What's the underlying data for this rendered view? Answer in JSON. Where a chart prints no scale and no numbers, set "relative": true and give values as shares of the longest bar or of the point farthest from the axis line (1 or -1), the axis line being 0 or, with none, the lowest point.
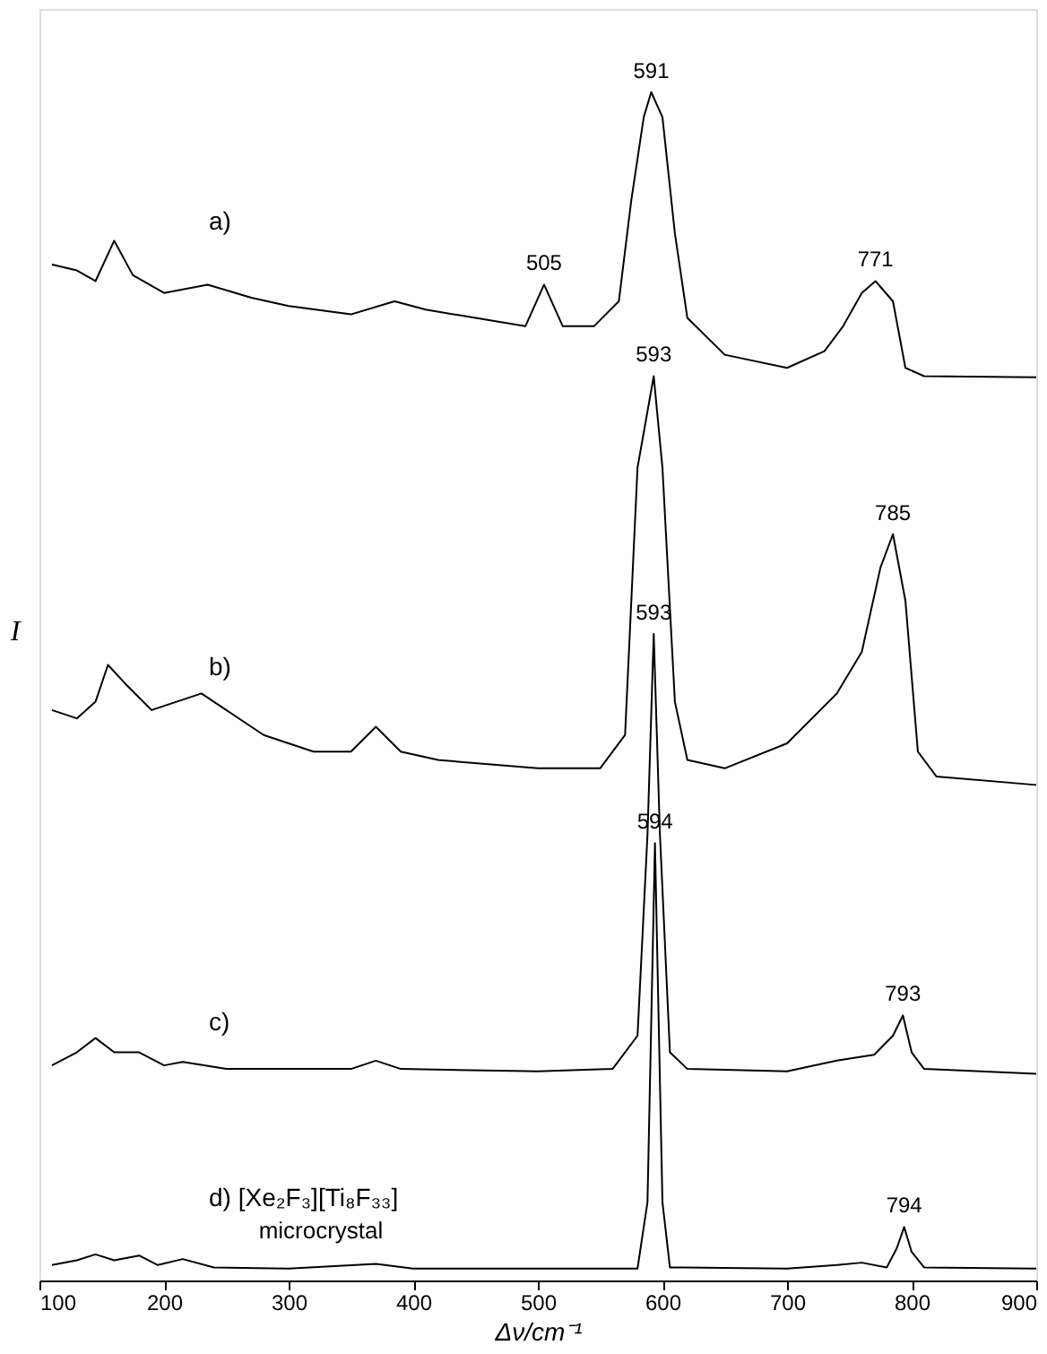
{
  "chart_data": {
    "type": "line",
    "relative": true,
    "xlabel": "Δν/cm⁻¹",
    "ylabel": "I",
    "xlim": [
      100,
      900
    ],
    "xticks": [
      100,
      200,
      300,
      400,
      500,
      600,
      700,
      800,
      900
    ],
    "grid": false,
    "marker": "none",
    "line_style": "solid",
    "series": [
      {
        "name": "a)",
        "color": "#000000",
        "x": [
          110,
          130,
          145,
          160,
          175,
          200,
          235,
          270,
          300,
          350,
          385,
          410,
          450,
          490,
          505,
          520,
          545,
          565,
          575,
          585,
          591,
          600,
          610,
          620,
          650,
          700,
          730,
          745,
          760,
          771,
          785,
          795,
          810,
          900
        ],
        "values": [
          0.855,
          0.85,
          0.841,
          0.875,
          0.846,
          0.831,
          0.838,
          0.827,
          0.82,
          0.813,
          0.824,
          0.817,
          0.81,
          0.803,
          0.838,
          0.803,
          0.803,
          0.824,
          0.909,
          0.979,
          1.0,
          0.979,
          0.881,
          0.81,
          0.779,
          0.768,
          0.782,
          0.803,
          0.831,
          0.841,
          0.824,
          0.768,
          0.761,
          0.76
        ]
      },
      {
        "name": "b)",
        "color": "#000000",
        "x": [
          110,
          130,
          145,
          155,
          170,
          190,
          230,
          250,
          280,
          320,
          350,
          370,
          390,
          420,
          500,
          550,
          570,
          580,
          593,
          600,
          610,
          620,
          650,
          700,
          740,
          760,
          775,
          785,
          795,
          805,
          820,
          900
        ],
        "values": [
          0.48,
          0.473,
          0.487,
          0.518,
          0.501,
          0.48,
          0.494,
          0.48,
          0.459,
          0.445,
          0.445,
          0.466,
          0.445,
          0.438,
          0.431,
          0.431,
          0.459,
          0.684,
          0.761,
          0.684,
          0.487,
          0.438,
          0.431,
          0.452,
          0.494,
          0.529,
          0.6,
          0.628,
          0.572,
          0.445,
          0.424,
          0.417
        ]
      },
      {
        "name": "c)",
        "color": "#000000",
        "x": [
          110,
          130,
          145,
          160,
          180,
          200,
          215,
          250,
          300,
          350,
          370,
          390,
          500,
          560,
          580,
          588,
          593,
          598,
          606,
          620,
          700,
          740,
          770,
          785,
          793,
          800,
          810,
          900
        ],
        "values": [
          0.181,
          0.192,
          0.204,
          0.192,
          0.192,
          0.181,
          0.184,
          0.178,
          0.178,
          0.178,
          0.185,
          0.178,
          0.176,
          0.178,
          0.206,
          0.375,
          0.544,
          0.375,
          0.192,
          0.178,
          0.176,
          0.185,
          0.19,
          0.206,
          0.223,
          0.192,
          0.178,
          0.174
        ]
      },
      {
        "name": "d) [Xe₂F₃][Ti₈F₃₃]",
        "color": "#000000",
        "x": [
          110,
          130,
          145,
          160,
          180,
          195,
          215,
          240,
          300,
          370,
          400,
          580,
          588,
          594,
          600,
          606,
          700,
          740,
          760,
          780,
          788,
          794,
          800,
          810,
          900
        ],
        "values": [
          0.013,
          0.017,
          0.022,
          0.017,
          0.021,
          0.013,
          0.018,
          0.011,
          0.01,
          0.014,
          0.01,
          0.01,
          0.066,
          0.368,
          0.066,
          0.011,
          0.01,
          0.013,
          0.015,
          0.011,
          0.027,
          0.045,
          0.024,
          0.011,
          0.01
        ]
      }
    ],
    "annotations": [
      {
        "text": "591",
        "x": 591,
        "y": 1.0
      },
      {
        "text": "505",
        "x": 505,
        "y": 0.838
      },
      {
        "text": "771",
        "x": 771,
        "y": 0.841
      },
      {
        "text": "593",
        "x": 593,
        "y": 0.761
      },
      {
        "text": "785",
        "x": 785,
        "y": 0.628
      },
      {
        "text": "593",
        "x": 593,
        "y": 0.544
      },
      {
        "text": "793",
        "x": 793,
        "y": 0.223
      },
      {
        "text": "594",
        "x": 594,
        "y": 0.368
      },
      {
        "text": "794",
        "x": 794,
        "y": 0.045
      },
      "microcrystal"
    ]
  }
}
